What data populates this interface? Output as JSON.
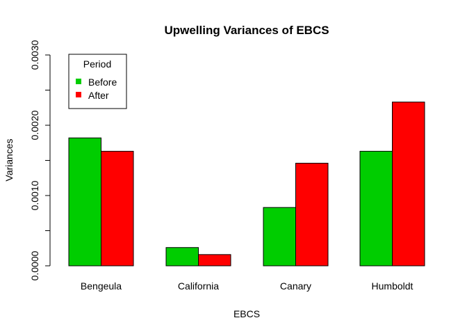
{
  "chart_data": {
    "type": "bar",
    "title": "Upwelling Variances of EBCS",
    "xlabel": "EBCS",
    "ylabel": "Variances",
    "categories": [
      "Bengeula",
      "California",
      "Canary",
      "Humboldt"
    ],
    "series": [
      {
        "name": "Before",
        "color": "#00CD00",
        "values": [
          0.00182,
          0.00026,
          0.00083,
          0.00163
        ]
      },
      {
        "name": "After",
        "color": "#FF0000",
        "values": [
          0.00163,
          0.00016,
          0.00146,
          0.00233
        ]
      }
    ],
    "ylim": [
      0,
      0.003
    ],
    "yticks": [
      "0.0000",
      "0.0010",
      "0.0020",
      "0.0030"
    ],
    "yticks_values": [
      0,
      0.001,
      0.002,
      0.003
    ],
    "minor_yticks_values": [
      0.0005,
      0.0015,
      0.0025
    ],
    "grid": false,
    "legend": {
      "title": "Period",
      "position": "top-left"
    }
  }
}
